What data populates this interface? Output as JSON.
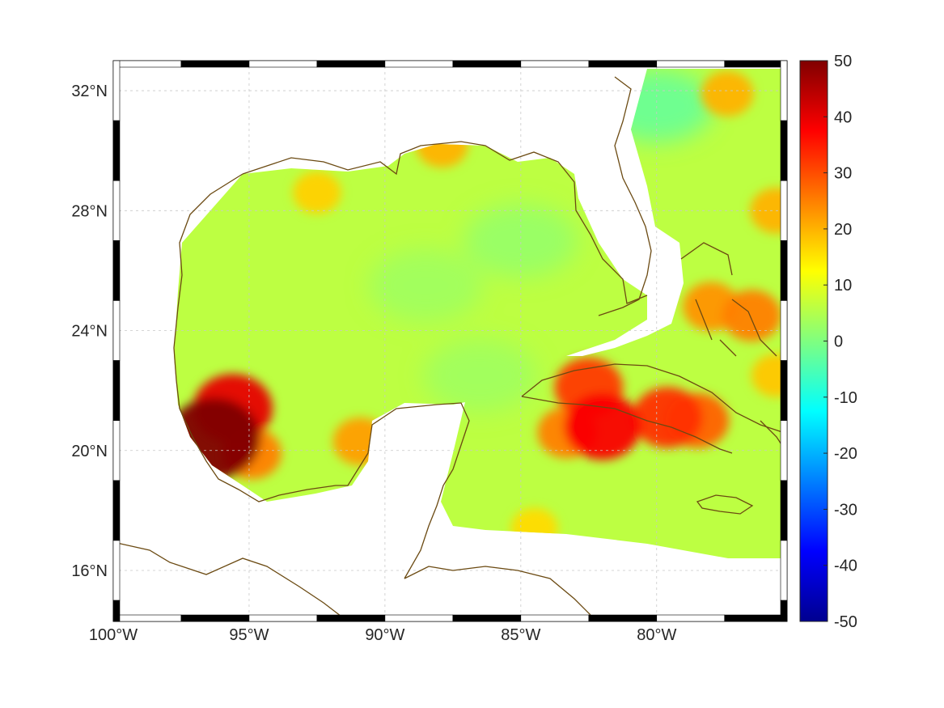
{
  "map": {
    "region": "Gulf of Mexico and Caribbean",
    "projection": "equirectangular with black/white frame",
    "lon_range": [
      -100,
      -75.2
    ],
    "lat_range": [
      14.3,
      33
    ],
    "lon_ticks": [
      {
        "value": -100,
        "label": "100°W"
      },
      {
        "value": -95,
        "label": "95°W"
      },
      {
        "value": -90,
        "label": "90°W"
      },
      {
        "value": -85,
        "label": "85°W"
      },
      {
        "value": -80,
        "label": "80°W"
      }
    ],
    "lat_ticks": [
      {
        "value": 32,
        "label": "32°N"
      },
      {
        "value": 28,
        "label": "28°N"
      },
      {
        "value": 24,
        "label": "24°N"
      },
      {
        "value": 20,
        "label": "20°N"
      },
      {
        "value": 16,
        "label": "16°N"
      }
    ],
    "grid": true,
    "coastline_color": "#6b4a12"
  },
  "colorbar": {
    "min": -50,
    "max": 50,
    "colormap": "jet",
    "placement": "right",
    "ticks": [
      "50",
      "40",
      "30",
      "20",
      "10",
      "0",
      "-10",
      "-20",
      "-30",
      "-40",
      "-50"
    ]
  },
  "chart_data": {
    "type": "heatmap",
    "value_range": [
      -50,
      50
    ],
    "background_value": 6,
    "hotspots": [
      {
        "lon": -96.3,
        "lat": 20.4,
        "value": 50
      },
      {
        "lon": -95.6,
        "lat": 21.4,
        "value": 40
      },
      {
        "lon": -94.9,
        "lat": 19.9,
        "value": 25
      },
      {
        "lon": -82.0,
        "lat": 20.8,
        "value": 38
      },
      {
        "lon": -83.3,
        "lat": 20.6,
        "value": 25
      },
      {
        "lon": -82.5,
        "lat": 22.1,
        "value": 32
      },
      {
        "lon": -79.6,
        "lat": 21.1,
        "value": 33
      },
      {
        "lon": -78.5,
        "lat": 21.0,
        "value": 28
      },
      {
        "lon": -78.0,
        "lat": 24.8,
        "value": 23
      },
      {
        "lon": -76.5,
        "lat": 24.5,
        "value": 25
      },
      {
        "lon": -75.6,
        "lat": 28.0,
        "value": 20
      },
      {
        "lon": -77.4,
        "lat": 31.9,
        "value": 20
      },
      {
        "lon": -92.5,
        "lat": 28.6,
        "value": 17
      },
      {
        "lon": -87.9,
        "lat": 30.2,
        "value": 20
      },
      {
        "lon": -90.9,
        "lat": 20.3,
        "value": 22
      },
      {
        "lon": -84.5,
        "lat": 17.4,
        "value": 16
      },
      {
        "lon": -75.6,
        "lat": 22.5,
        "value": 18
      }
    ],
    "coldspots": [
      {
        "lon": -80.0,
        "lat": 31.5,
        "value": -3
      },
      {
        "lon": -85.0,
        "lat": 27.0,
        "value": 2
      },
      {
        "lon": -88.5,
        "lat": 25.5,
        "value": 3
      },
      {
        "lon": -86.5,
        "lat": 22.5,
        "value": 3
      }
    ]
  }
}
